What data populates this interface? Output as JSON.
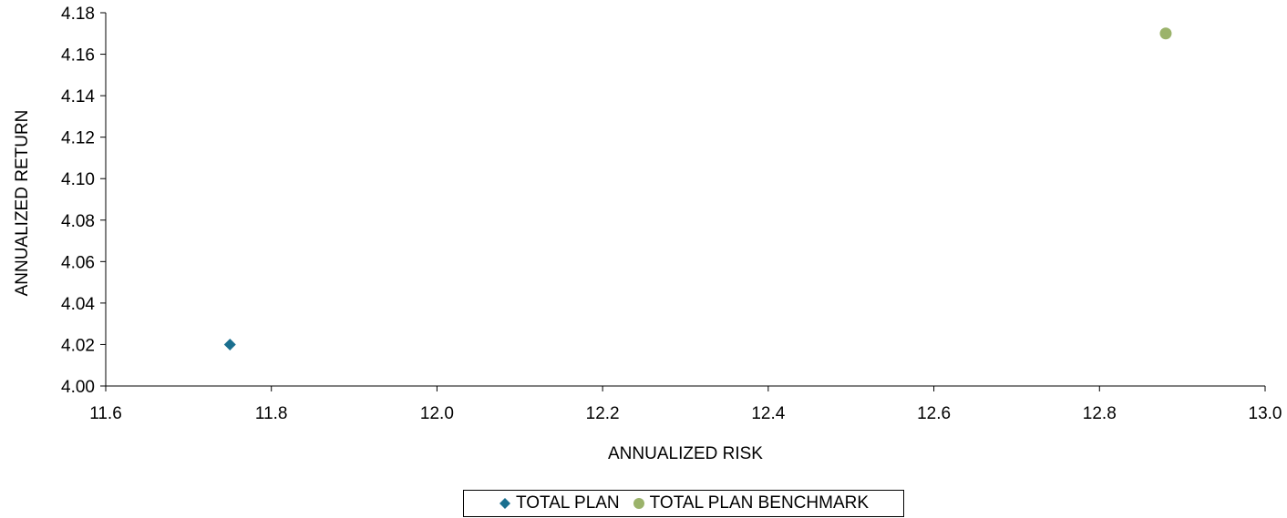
{
  "chart_data": {
    "type": "scatter",
    "title": "",
    "xlabel": "ANNUALIZED RISK",
    "ylabel": "ANNUALIZED RETURN",
    "xlim": [
      11.6,
      13.0
    ],
    "ylim": [
      4.0,
      4.18
    ],
    "x_ticks": [
      "11.6",
      "11.8",
      "12.0",
      "12.2",
      "12.4",
      "12.6",
      "12.8",
      "13.0"
    ],
    "y_ticks": [
      "4.00",
      "4.02",
      "4.04",
      "4.06",
      "4.08",
      "4.10",
      "4.12",
      "4.14",
      "4.16",
      "4.18"
    ],
    "grid": false,
    "legend_position": "bottom",
    "series": [
      {
        "name": "TOTAL PLAN",
        "marker": "diamond",
        "color": "#1a6f8f",
        "points": [
          {
            "x": 11.75,
            "y": 4.02
          }
        ]
      },
      {
        "name": "TOTAL PLAN BENCHMARK",
        "marker": "circle",
        "color": "#9bb36b",
        "points": [
          {
            "x": 12.88,
            "y": 4.17
          }
        ]
      }
    ]
  }
}
